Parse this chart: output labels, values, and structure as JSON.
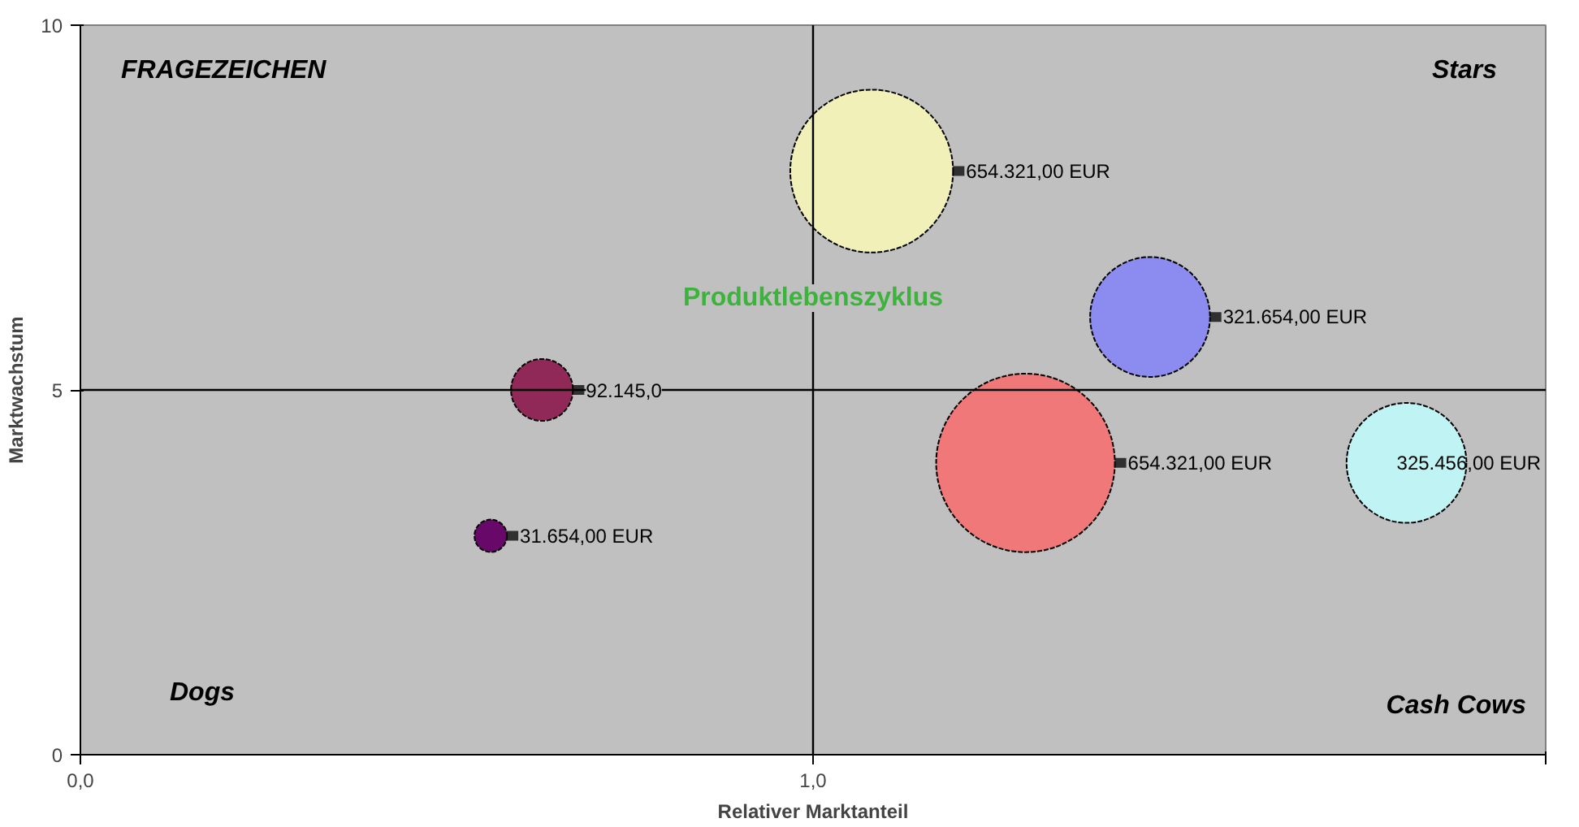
{
  "chart_data": {
    "type": "bubble",
    "xlabel": "Relativer Marktanteil",
    "ylabel": "Marktwachstum",
    "x": [
      1.08,
      1.46,
      0.63,
      1.29,
      1.81,
      0.56
    ],
    "values": [
      8,
      6,
      5,
      4,
      4,
      3
    ],
    "sizes": [
      0.83,
      0.45,
      0.12,
      1,
      0.45,
      0.033
    ],
    "colors": [
      "#f0f0b8",
      "#8c8cf0",
      "#902858",
      "#f07878",
      "#c0f4f4",
      "#680868"
    ],
    "xlim": [
      0,
      2
    ],
    "ylim": [
      0,
      10
    ],
    "xticks": [
      {
        "value": 0,
        "label": "0,0"
      },
      {
        "value": 1,
        "label": "1,0"
      },
      {
        "value": 2,
        "label": null
      }
    ],
    "yticks": [
      0,
      5,
      10
    ],
    "ref_lines": [
      {
        "axis": "x",
        "value": 1,
        "color": "#000000"
      },
      {
        "axis": "y",
        "value": 5,
        "color": "#000000"
      }
    ],
    "annotations": [
      "FRAGEZEICHEN",
      "Stars",
      "Dogs",
      "Cash Cows",
      "Produktlebenszyklus",
      {
        "text": "654.321,00 EUR",
        "x": 1.08,
        "y": 8
      },
      {
        "text": "321.654,00 EUR",
        "x": 1.46,
        "y": 6
      },
      {
        "text": "92.145,0",
        "x": 0.63,
        "y": 5
      },
      {
        "text": "654.321,00 EUR",
        "x": 1.29,
        "y": 4
      },
      {
        "text": "325.456,00 EUR",
        "x": 1.81,
        "y": 4
      },
      {
        "text": "31.654,00 EUR",
        "x": 0.56,
        "y": 3
      }
    ],
    "grid": false
  }
}
